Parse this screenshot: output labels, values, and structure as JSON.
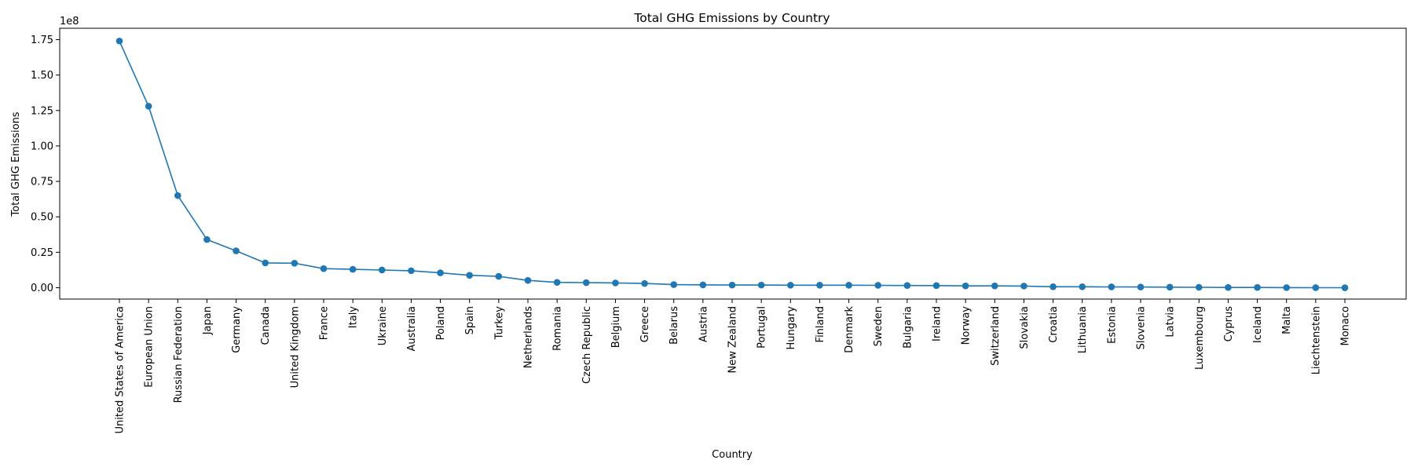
{
  "chart_data": {
    "type": "line",
    "title": "Total GHG Emissions by Country",
    "xlabel": "Country",
    "ylabel": "Total GHG Emissions",
    "y_offset_label": "1e8",
    "y_tick_labels": [
      "0.00",
      "0.25",
      "0.50",
      "0.75",
      "1.00",
      "1.25",
      "1.50",
      "1.75"
    ],
    "y_ticks": [
      0,
      0.25,
      0.5,
      0.75,
      1.0,
      1.25,
      1.5,
      1.75
    ],
    "ylim": [
      -0.08,
      1.83
    ],
    "grid": false,
    "color": "#1f77b4",
    "marker": "circle",
    "categories": [
      "United States of America",
      "European Union",
      "Russian Federation",
      "Japan",
      "Germany",
      "Canada",
      "United Kingdom",
      "France",
      "Italy",
      "Ukraine",
      "Australia",
      "Poland",
      "Spain",
      "Turkey",
      "Netherlands",
      "Romania",
      "Czech Republic",
      "Belgium",
      "Greece",
      "Belarus",
      "Austria",
      "New Zealand",
      "Portugal",
      "Hungary",
      "Finland",
      "Denmark",
      "Sweden",
      "Bulgaria",
      "Ireland",
      "Norway",
      "Switzerland",
      "Slovakia",
      "Croatia",
      "Lithuania",
      "Estonia",
      "Slovenia",
      "Latvia",
      "Luxembourg",
      "Cyprus",
      "Iceland",
      "Malta",
      "Liechtenstein",
      "Monaco"
    ],
    "values": [
      1.74,
      1.28,
      0.65,
      0.34,
      0.26,
      0.175,
      0.173,
      0.135,
      0.13,
      0.125,
      0.12,
      0.105,
      0.088,
      0.08,
      0.052,
      0.038,
      0.036,
      0.034,
      0.03,
      0.022,
      0.02,
      0.019,
      0.019,
      0.018,
      0.018,
      0.018,
      0.017,
      0.016,
      0.015,
      0.013,
      0.013,
      0.012,
      0.007,
      0.007,
      0.006,
      0.005,
      0.004,
      0.003,
      0.002,
      0.002,
      0.001,
      0.0005,
      0.0001
    ]
  }
}
